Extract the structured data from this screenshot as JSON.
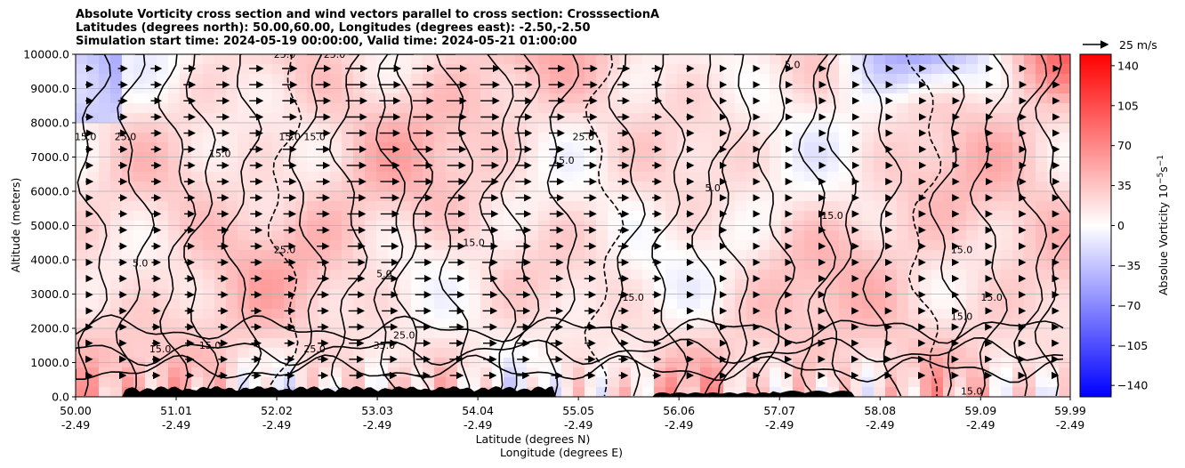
{
  "chart_data": {
    "type": "heatmap",
    "title_lines": [
      "Absolute Vorticity cross section and wind vectors parallel to cross section: CrosssectionA",
      "Latitudes (degrees north): 50.00,60.00, Longitudes (degrees east): -2.50,-2.50",
      "Simulation start time: 2024-05-19 00:00:00, Valid time: 2024-05-21 01:00:00"
    ],
    "ylabel": "Altitude (meters)",
    "xlabel_line1": "Latitude (degrees N)",
    "xlabel_line2": "Longitude (degrees E)",
    "ylim": [
      0,
      10000
    ],
    "xlim": [
      50.0,
      59.99
    ],
    "y_ticks": [
      {
        "v": 0,
        "label": "0.0"
      },
      {
        "v": 1000,
        "label": "1000.0"
      },
      {
        "v": 2000,
        "label": "2000.0"
      },
      {
        "v": 3000,
        "label": "3000.0"
      },
      {
        "v": 4000,
        "label": "4000.0"
      },
      {
        "v": 5000,
        "label": "5000.0"
      },
      {
        "v": 6000,
        "label": "6000.0"
      },
      {
        "v": 7000,
        "label": "7000.0"
      },
      {
        "v": 8000,
        "label": "8000.0"
      },
      {
        "v": 9000,
        "label": "9000.0"
      },
      {
        "v": 10000,
        "label": "10000.0"
      }
    ],
    "x_ticks": [
      {
        "v": 50.0,
        "lat": "50.00",
        "lon": "-2.49"
      },
      {
        "v": 51.01,
        "lat": "51.01",
        "lon": "-2.49"
      },
      {
        "v": 52.02,
        "lat": "52.02",
        "lon": "-2.49"
      },
      {
        "v": 53.03,
        "lat": "53.03",
        "lon": "-2.49"
      },
      {
        "v": 54.04,
        "lat": "54.04",
        "lon": "-2.49"
      },
      {
        "v": 55.05,
        "lat": "55.05",
        "lon": "-2.49"
      },
      {
        "v": 56.06,
        "lat": "56.06",
        "lon": "-2.49"
      },
      {
        "v": 57.07,
        "lat": "57.07",
        "lon": "-2.49"
      },
      {
        "v": 58.08,
        "lat": "58.08",
        "lon": "-2.49"
      },
      {
        "v": 59.09,
        "lat": "59.09",
        "lon": "-2.49"
      },
      {
        "v": 59.99,
        "lat": "59.99",
        "lon": "-2.49"
      }
    ],
    "grid": "horizontal",
    "colorbar": {
      "label": "Absolue Vorticity 10",
      "label_exponent": "−5",
      "label_unit": "s",
      "label_unit_exponent": "−1",
      "min": -150,
      "max": 150,
      "ticks": [
        {
          "v": 140,
          "label": "140"
        },
        {
          "v": 105,
          "label": "105"
        },
        {
          "v": 70,
          "label": "70"
        },
        {
          "v": 35,
          "label": "35"
        },
        {
          "v": 0,
          "label": "0"
        },
        {
          "v": -35,
          "label": "−35"
        },
        {
          "v": -70,
          "label": "−70"
        },
        {
          "v": -105,
          "label": "−105"
        },
        {
          "v": -140,
          "label": "−140"
        }
      ],
      "colormap": "bwr"
    },
    "quiver_key": {
      "label": "25 m/s",
      "speed": 25
    },
    "contour_levels": [
      5.0,
      15.0,
      25.0,
      35.0
    ],
    "contour_labels": [
      {
        "text": "15.0",
        "x": 50.1,
        "y": 7500
      },
      {
        "text": "25.0",
        "x": 50.5,
        "y": 7500
      },
      {
        "text": "5.0",
        "x": 50.65,
        "y": 3800
      },
      {
        "text": "15.0",
        "x": 50.85,
        "y": 1300
      },
      {
        "text": "15.0",
        "x": 51.35,
        "y": 1400
      },
      {
        "text": "15.0",
        "x": 51.45,
        "y": 7000
      },
      {
        "text": "25.0",
        "x": 52.1,
        "y": 9900
      },
      {
        "text": "25.0",
        "x": 52.6,
        "y": 9900
      },
      {
        "text": "15.0",
        "x": 52.15,
        "y": 7500
      },
      {
        "text": "15.0",
        "x": 52.4,
        "y": 7500
      },
      {
        "text": "25.0",
        "x": 52.4,
        "y": 1300
      },
      {
        "text": "15.0",
        "x": 54.0,
        "y": 4400
      },
      {
        "text": "15.0",
        "x": 55.6,
        "y": 2800
      },
      {
        "text": "5.0",
        "x": 57.2,
        "y": 9600
      },
      {
        "text": "15.0",
        "x": 58.9,
        "y": 2250
      },
      {
        "text": "15.0",
        "x": 59.2,
        "y": 2800
      },
      {
        "text": "15.0",
        "x": 59.0,
        "y": 70
      },
      {
        "text": "5.0",
        "x": 56.4,
        "y": 6000
      },
      {
        "text": "15.0",
        "x": 57.6,
        "y": 5200
      },
      {
        "text": "15.0",
        "x": 58.9,
        "y": 4200
      },
      {
        "text": "35.0",
        "x": 53.1,
        "y": 1400
      },
      {
        "text": "25.0",
        "x": 53.3,
        "y": 1700
      },
      {
        "text": "5.0",
        "x": 53.1,
        "y": 3500
      },
      {
        "text": "25.0",
        "x": 52.1,
        "y": 4200
      },
      {
        "text": "15.0",
        "x": 54.9,
        "y": 6800
      },
      {
        "text": "25.0",
        "x": 55.1,
        "y": 7500
      }
    ]
  }
}
